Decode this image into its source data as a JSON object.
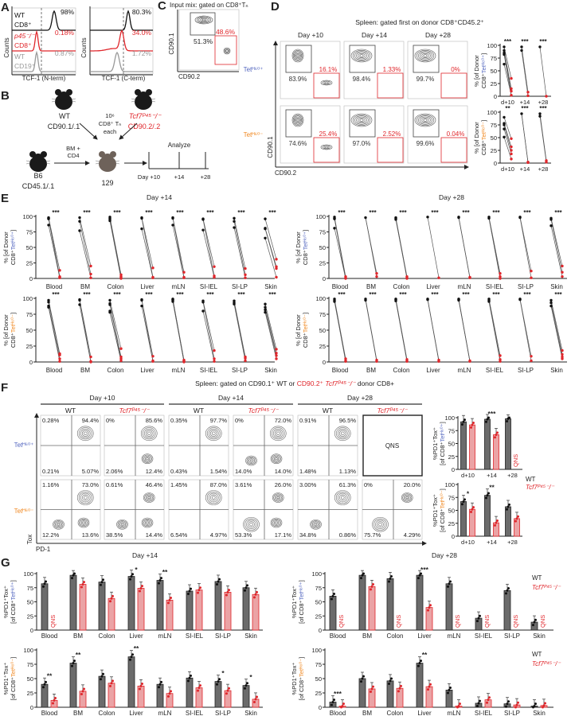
{
  "panel_labels": {
    "a": "A",
    "b": "B",
    "c": "C",
    "d": "D",
    "e": "E",
    "f": "F",
    "g": "G"
  },
  "colors": {
    "wt": "#222222",
    "ko": "#e0262b",
    "ko_fill": "#eba3a5",
    "wt_fill": "#6b6b6b",
    "tet_pos": "#5568c0",
    "tet_neg": "#f08a24",
    "cd19": "#999999",
    "mouse_129": "#6e625a"
  },
  "y_ticks": [
    "0",
    "25",
    "50",
    "75",
    "100"
  ],
  "tet_pos": "Tetᴴ⁶⁰⁺",
  "tet_neg": "Tetᴴ⁶⁰⁻",
  "tcf7_ko": "Tcf7ᴾ⁴⁵⁻/⁻",
  "wt": "WT",
  "qns": "QNS",
  "organs": [
    "Blood",
    "BM",
    "Colon",
    "Liver",
    "mLN",
    "SI-IEL",
    "SI-LP",
    "Skin"
  ],
  "ylabel_pct_donor": {
    "line1": "% [of Donor",
    "cd8": "CD8⁺",
    "close": "]"
  },
  "ylabel_pd1tox": {
    "line1": "%PD1⁺Tox⁺",
    "open": "[of CD8⁺",
    "close": "]"
  },
  "panel_a": {
    "ylabel": "Counts",
    "hist1": {
      "xlabel": "TCF-1 (N-term)",
      "rows": [
        {
          "l1": "WT",
          "l2": "CD8⁺",
          "pct": "98%"
        },
        {
          "l1": "p45⁻/⁻",
          "l2": "CD8⁺",
          "pct": "0.18%"
        },
        {
          "l1": "WT",
          "l2": "CD19⁺",
          "pct": "0.87%"
        }
      ]
    },
    "hist2": {
      "xlabel": "TCF-1 (C-term)",
      "pcts": [
        "80.3%",
        "34.0%",
        "1.72%"
      ]
    }
  },
  "panel_b": {
    "donor_wt": {
      "name": "WT",
      "congenic": "CD90.1/.1"
    },
    "donor_ko": {
      "name": "Tcf7ᴾ⁴⁵⁻/⁻",
      "congenic": "CD90.2/.2"
    },
    "cells": [
      "10⁶",
      "CD8⁺ Tₙ",
      "each"
    ],
    "host": {
      "name": "B6",
      "congenic": "CD45.1/.1"
    },
    "support": [
      "BM +",
      "CD4"
    ],
    "recipient": "129",
    "analyze": "Analyze",
    "timepoints": [
      "Day +10",
      "+14",
      "+28"
    ]
  },
  "panel_c": {
    "title": "Input mix: gated on CD8⁺Tₙ",
    "wt_pct": "51.3%",
    "ko_pct": "48.6%",
    "ylabel": "CD90.1",
    "xlabel": "CD90.2"
  },
  "panel_d": {
    "title": "Spleen: gated first on donor CD8⁺CD45.2⁺",
    "days": [
      "Day +10",
      "Day +14",
      "Day +28"
    ],
    "ylabel": "CD90.1",
    "xlabel": "CD90.2",
    "rows": [
      {
        "wt_pcts": [
          "83.9%",
          "98.4%",
          "99.7%"
        ],
        "ko_pcts": [
          "16.1%",
          "1.33%",
          "0%"
        ]
      },
      {
        "wt_pcts": [
          "74.6%",
          "97.0%",
          "99.6%"
        ],
        "ko_pcts": [
          "25.4%",
          "2.52%",
          "0.04%"
        ]
      }
    ],
    "x_ticks": [
      "d+10",
      "+14",
      "+28"
    ],
    "line_charts": [
      {
        "stars": [
          "***",
          "***",
          "***"
        ],
        "groups": [
          {
            "wt": [
              97,
              90,
              85,
              82,
              63
            ],
            "ko": [
              35,
              15,
              10,
              2
            ]
          },
          {
            "wt": [
              97,
              90
            ],
            "ko": [
              8,
              1
            ]
          },
          {
            "wt": [
              97
            ],
            "ko": [
              0
            ]
          }
        ]
      },
      {
        "stars": [
          "**",
          "***",
          "***"
        ],
        "groups": [
          {
            "wt": [
              90,
              78,
              75,
              67,
              51
            ],
            "ko": [
              48,
              32,
              25,
              18,
              8
            ]
          },
          {
            "wt": [
              97
            ],
            "ko": [
              2,
              1
            ]
          },
          {
            "wt": [
              97,
              92
            ],
            "ko": [
              5,
              2
            ]
          }
        ]
      }
    ]
  },
  "panel_e": {
    "titles": [
      "Day +14",
      "Day +28"
    ],
    "star": "***",
    "plots": [
      {
        "day": 0,
        "tet": "pos",
        "groups": [
          {
            "wt": [
              98,
              97,
              96,
              86
            ],
            "ko": [
              13,
              3,
              2,
              1
            ]
          },
          {
            "wt": [
              98,
              92,
              77
            ],
            "ko": [
              20,
              7,
              1
            ]
          },
          {
            "wt": [
              99,
              97,
              95,
              93
            ],
            "ko": [
              6,
              3,
              1,
              0
            ]
          },
          {
            "wt": [
              98,
              97,
              80
            ],
            "ko": [
              17,
              2,
              1
            ]
          },
          {
            "wt": [
              98,
              97,
              86
            ],
            "ko": [
              10,
              2,
              1
            ]
          },
          {
            "wt": [
              96,
              95,
              78
            ],
            "ko": [
              19,
              4,
              2
            ]
          },
          {
            "wt": [
              97,
              92,
              82
            ],
            "ko": [
              16,
              6,
              1
            ]
          },
          {
            "wt": [
              96,
              81,
              80,
              65
            ],
            "ko": [
              31,
              19,
              16,
              2
            ]
          }
        ]
      },
      {
        "day": 1,
        "tet": "pos",
        "groups": [
          {
            "wt": [
              99,
              97,
              96,
              81
            ],
            "ko": [
              3,
              1,
              0
            ]
          },
          {
            "wt": [
              98
            ],
            "ko": [
              8,
              3
            ]
          },
          {
            "wt": [
              98,
              97,
              95
            ],
            "ko": [
              3,
              1,
              0
            ]
          },
          {
            "wt": [
              99
            ],
            "ko": [
              1
            ]
          },
          {
            "wt": [
              99,
              98
            ],
            "ko": [
              2,
              1
            ]
          },
          {
            "wt": [
              99,
              97
            ],
            "ko": [
              8,
              3,
              0
            ]
          },
          {
            "wt": [
              99,
              98
            ],
            "ko": [
              12,
              1
            ]
          },
          {
            "wt": [
              97,
              95,
              85
            ],
            "ko": [
              20,
              10,
              3
            ]
          }
        ]
      },
      {
        "day": 0,
        "tet": "neg",
        "groups": [
          {
            "wt": [
              97,
              94,
              88,
              86
            ],
            "ko": [
              13,
              11,
              5,
              1
            ]
          },
          {
            "wt": [
              98,
              97,
              90
            ],
            "ko": [
              8,
              1,
              0
            ]
          },
          {
            "wt": [
              97,
              92,
              90,
              80,
              78
            ],
            "ko": [
              21,
              8,
              5,
              2
            ]
          },
          {
            "wt": [
              98,
              97,
              88
            ],
            "ko": [
              9,
              2,
              1
            ]
          },
          {
            "wt": [
              99,
              98,
              97,
              95
            ],
            "ko": [
              3,
              2,
              1,
              0
            ]
          },
          {
            "wt": [
              96,
              94,
              80
            ],
            "ko": [
              18,
              5,
              1
            ]
          },
          {
            "wt": [
              96,
              93,
              91
            ],
            "ko": [
              8,
              6,
              2
            ]
          },
          {
            "wt": [
              91,
              86,
              82,
              78
            ],
            "ko": [
              20,
              14,
              10,
              5
            ]
          }
        ]
      },
      {
        "day": 1,
        "tet": "neg",
        "groups": [
          {
            "wt": [
              99,
              97,
              95
            ],
            "ko": [
              5,
              2,
              1
            ]
          },
          {
            "wt": [
              99,
              97
            ],
            "ko": [
              3,
              1
            ]
          },
          {
            "wt": [
              99,
              98,
              96
            ],
            "ko": [
              4,
              2,
              1
            ]
          },
          {
            "wt": [
              99,
              98
            ],
            "ko": [
              3,
              1
            ]
          },
          {
            "wt": [
              99,
              98,
              97
            ],
            "ko": [
              2,
              1
            ]
          },
          {
            "wt": [
              99,
              97,
              95
            ],
            "ko": [
              10,
              4,
              1
            ]
          },
          {
            "wt": [
              99,
              98
            ],
            "ko": [
              9,
              2
            ]
          },
          {
            "wt": [
              97,
              93,
              88
            ],
            "ko": [
              18,
              12,
              8,
              5
            ]
          }
        ]
      }
    ]
  },
  "panel_f": {
    "title": {
      "p1": "Spleen: gated on CD90.1⁺ WT or ",
      "p2": "CD90.2⁺ ",
      "p3": "Tcf7ᴾ⁴⁵⁻/⁻",
      "p4": " donor CD8+"
    },
    "days": [
      "Day +10",
      "Day +14",
      "Day +28"
    ],
    "ylabel": "Tox",
    "xlabel": "PD-1",
    "flow": [
      [
        [
          "0.28%",
          "94.4%",
          "0.21%",
          "5.07%"
        ],
        [
          "0%",
          "85.6%",
          "2.06%",
          "12.4%"
        ],
        [
          "0.35%",
          "97.7%",
          "0.43%",
          "1.54%"
        ],
        [
          "0%",
          "72.0%",
          "14.0%",
          "14.0%"
        ],
        [
          "0.91%",
          "96.5%",
          "1.48%",
          "1.13%"
        ],
        null
      ],
      [
        [
          "1.16%",
          "73.0%",
          "12.2%",
          "13.6%"
        ],
        [
          "0.61%",
          "46.4%",
          "38.5%",
          "14.4%"
        ],
        [
          "1.45%",
          "87.0%",
          "6.54%",
          "4.97%"
        ],
        [
          "3.61%",
          "26.0%",
          "53.3%",
          "17.1%"
        ],
        [
          "3.00%",
          "61.3%",
          "34.8%",
          "0.86%"
        ],
        [
          "0%",
          "20.0%",
          "75.7%",
          "4.29%"
        ]
      ]
    ],
    "x_ticks": [
      "d+10",
      "+14",
      "+28"
    ],
    "bar_charts": [
      {
        "tet": "pos",
        "wt": [
          92,
          97,
          98
        ],
        "ko": [
          86,
          67,
          null
        ],
        "stars": [
          "",
          "***",
          ""
        ]
      },
      {
        "tet": "neg",
        "wt": [
          67,
          79,
          57
        ],
        "ko": [
          52,
          26,
          34
        ],
        "stars": [
          "*",
          "**",
          ""
        ]
      }
    ]
  },
  "chart_data": [
    {
      "type": "bar",
      "title": "Day +14",
      "categories": [
        "Blood",
        "BM",
        "Colon",
        "Liver",
        "mLN",
        "SI-IEL",
        "SI-LP",
        "Skin"
      ],
      "ylabel": "%PD1⁺Tox⁺ [of CD8⁺Tetᴴ⁶⁰⁺]",
      "ylim": [
        0,
        100
      ],
      "series": [
        {
          "name": "WT",
          "values": [
            82,
            97,
            85,
            95,
            88,
            69,
            86,
            75
          ]
        },
        {
          "name": "Tcf7ᴾ⁴⁵⁻/⁻",
          "values": [
            null,
            81,
            56,
            74,
            53,
            71,
            67,
            63
          ]
        }
      ],
      "stars": [
        "",
        "",
        "",
        "*",
        "**",
        "",
        "",
        ""
      ]
    },
    {
      "type": "bar",
      "title": "Day +28",
      "categories": [
        "Blood",
        "BM",
        "Colon",
        "Liver",
        "mLN",
        "SI-IEL",
        "SI-LP",
        "Skin"
      ],
      "ylabel": "%PD1⁺Tox⁺ [of CD8⁺Tetᴴ⁶⁰⁺]",
      "ylim": [
        0,
        100
      ],
      "series": [
        {
          "name": "WT",
          "values": [
            60,
            97,
            91,
            97,
            82,
            21,
            70,
            14
          ]
        },
        {
          "name": "Tcf7ᴾ⁴⁵⁻/⁻",
          "values": [
            null,
            77,
            null,
            40,
            null,
            null,
            null,
            null
          ]
        }
      ],
      "stars": [
        "",
        "",
        "",
        "***",
        "",
        "",
        "",
        ""
      ]
    },
    {
      "type": "bar",
      "title": "",
      "categories": [
        "Blood",
        "BM",
        "Colon",
        "Liver",
        "mLN",
        "SI-IEL",
        "SI-LP",
        "Skin"
      ],
      "ylabel": "%PD1⁺Tox⁺ [of CD8⁺Tetᴴ⁶⁰⁻]",
      "ylim": [
        0,
        100
      ],
      "series": [
        {
          "name": "WT",
          "values": [
            40,
            77,
            54,
            88,
            40,
            51,
            45,
            38
          ]
        },
        {
          "name": "Tcf7ᴾ⁴⁵⁻/⁻",
          "values": [
            12,
            28,
            42,
            37,
            24,
            34,
            29,
            14
          ]
        }
      ],
      "stars": [
        "**",
        "**",
        "",
        "**",
        "",
        "",
        "*",
        "*"
      ]
    },
    {
      "type": "bar",
      "title": "",
      "categories": [
        "Blood",
        "BM",
        "Colon",
        "Liver",
        "mLN",
        "SI-IEL",
        "SI-LP",
        "Skin"
      ],
      "ylabel": "%PD1⁺Tox⁺ [of CD8⁺Tetᴴ⁶⁰⁻]",
      "ylim": [
        0,
        100
      ],
      "series": [
        {
          "name": "WT",
          "values": [
            9,
            50,
            46,
            77,
            30,
            7,
            6,
            2
          ]
        },
        {
          "name": "Tcf7ᴾ⁴⁵⁻/⁻",
          "values": [
            2,
            32,
            33,
            36,
            2,
            13,
            4,
            3
          ]
        }
      ],
      "stars": [
        "***",
        "",
        "",
        "**",
        "",
        "",
        "",
        ""
      ]
    }
  ]
}
